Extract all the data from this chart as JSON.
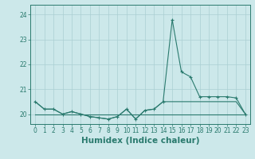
{
  "xlabel": "Humidex (Indice chaleur)",
  "ylabel": "",
  "x_values": [
    0,
    1,
    2,
    3,
    4,
    5,
    6,
    7,
    8,
    9,
    10,
    11,
    12,
    13,
    14,
    15,
    16,
    17,
    18,
    19,
    20,
    21,
    22,
    23
  ],
  "y_main": [
    20.5,
    20.2,
    20.2,
    20.0,
    20.1,
    20.0,
    19.9,
    19.85,
    19.8,
    19.9,
    20.2,
    19.8,
    20.15,
    20.2,
    20.5,
    23.8,
    21.7,
    21.5,
    20.7,
    20.7,
    20.7,
    20.7,
    20.65,
    20.0
  ],
  "y_flat": [
    20.0,
    20.0,
    20.0,
    20.0,
    20.0,
    20.0,
    20.0,
    20.0,
    20.0,
    20.0,
    20.0,
    20.0,
    20.0,
    20.0,
    20.0,
    20.0,
    20.0,
    20.0,
    20.0,
    20.0,
    20.0,
    20.0,
    20.0,
    20.0
  ],
  "y_env": [
    20.5,
    20.2,
    20.2,
    20.0,
    20.1,
    20.0,
    19.9,
    19.85,
    19.8,
    19.9,
    20.2,
    19.8,
    20.15,
    20.2,
    20.5,
    20.5,
    20.5,
    20.5,
    20.5,
    20.5,
    20.5,
    20.5,
    20.5,
    20.0
  ],
  "line_color": "#2a7a6e",
  "bg_color": "#cce8ea",
  "grid_color": "#aacfd2",
  "ylim": [
    19.6,
    24.4
  ],
  "xlim": [
    -0.5,
    23.5
  ],
  "yticks": [
    20,
    21,
    22,
    23,
    24
  ],
  "xticks": [
    0,
    1,
    2,
    3,
    4,
    5,
    6,
    7,
    8,
    9,
    10,
    11,
    12,
    13,
    14,
    15,
    16,
    17,
    18,
    19,
    20,
    21,
    22,
    23
  ],
  "tick_fontsize": 5.5,
  "xlabel_fontsize": 7.5
}
